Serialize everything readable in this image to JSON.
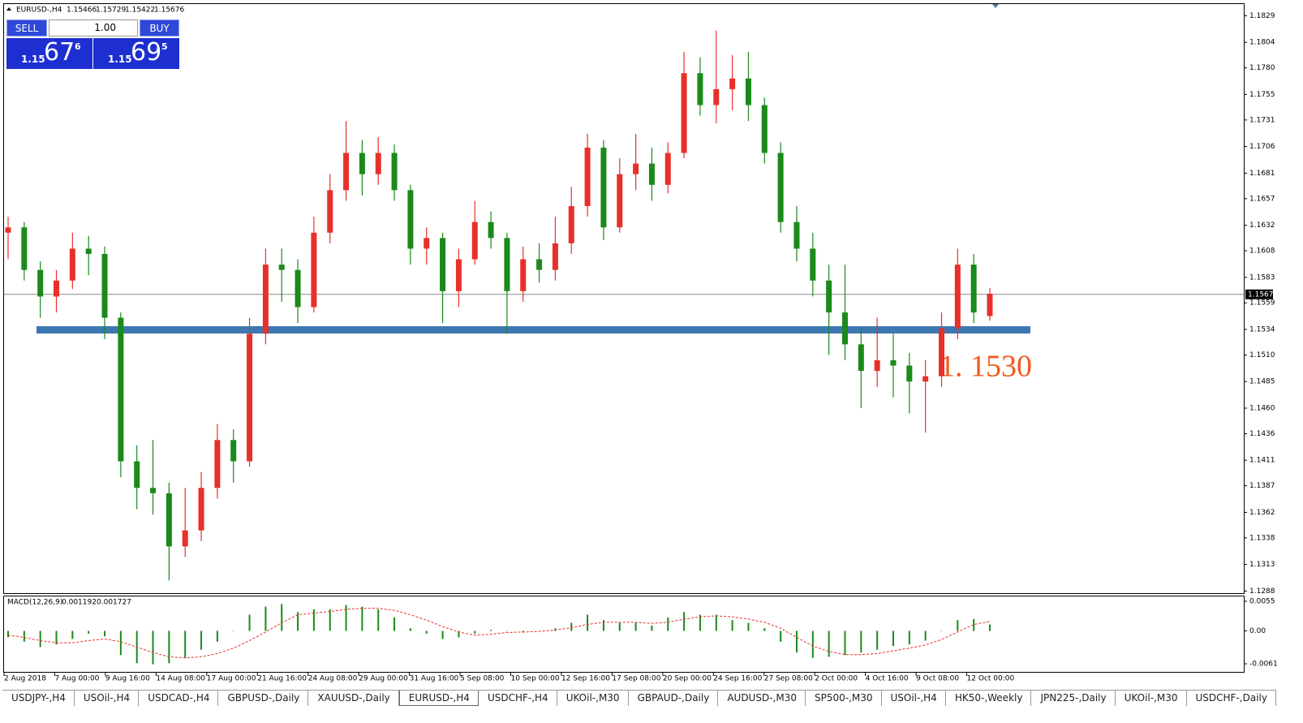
{
  "ui": {
    "trade_panel": {
      "sell": "SELL",
      "buy": "BUY",
      "lot": "1.00",
      "bid_big": "1.15",
      "bid_main": "67",
      "bid_small": "6",
      "ask_big": "1.15",
      "ask_main": "69",
      "ask_small": "5"
    },
    "tabs": [
      "USDJPY-,H4",
      "USOil-,H4",
      "USDCAD-,H4",
      "GBPUSD-,Daily",
      "XAUUSD-,Daily",
      "EURUSD-,H4",
      "USDCHF-,H4",
      "UKOil-,M30",
      "GBPAUD-,Daily",
      "AUDUSD-,M30",
      "SP500-,M30",
      "USOil-,H4",
      "HK50-,Weekly",
      "JPN225-,Daily",
      "UKOil-,M30",
      "USDCHF-,Daily"
    ],
    "active_tab": "EURUSD-,H4"
  },
  "chart_data": [
    {
      "type": "candlestick",
      "title": "EURUSD-,H4",
      "up_color": "#e8302a",
      "down_color": "#1a8a1a",
      "ylim": [
        1.1286,
        1.184
      ],
      "yticks": [
        1.1829,
        1.1804,
        {
          "value": 1.178,
          "label": "1.1780"
        },
        1.1755,
        1.1731,
        1.1706,
        1.1681,
        1.1657,
        1.1632,
        1.1608,
        1.1583,
        1.1559,
        1.1534,
        {
          "value": 1.151,
          "label": "1.1510"
        },
        1.1485,
        {
          "value": 1.146,
          "label": "1.1460"
        },
        1.1436,
        1.1411,
        1.1387,
        1.1362,
        1.1338,
        1.1313,
        1.1288
      ],
      "time_labels": [
        "2 Aug 2018",
        "7 Aug 00:00",
        "9 Aug 16:00",
        "14 Aug 08:00",
        "17 Aug 00:00",
        "21 Aug 16:00",
        "24 Aug 08:00",
        "29 Aug 00:00",
        "31 Aug 16:00",
        "5 Sep 08:00",
        "10 Sep 00:00",
        "12 Sep 16:00",
        "17 Sep 08:00",
        "20 Sep 00:00",
        "24 Sep 16:00",
        "27 Sep 08:00",
        "2 Oct 00:00",
        "4 Oct 16:00",
        "9 Oct 08:00",
        "12 Oct 00:00"
      ],
      "current_price": 1.1567,
      "level": 1.1534,
      "level_color": "#3e78b0",
      "annotation": "1. 1530",
      "annotation_color": "#f05a1e",
      "open": [
        1.1625,
        1.163,
        1.159,
        1.1565,
        1.158,
        1.161,
        1.1605,
        1.1545,
        1.141,
        1.1385,
        1.138,
        1.133,
        1.1345,
        1.1385,
        1.143,
        1.141,
        1.153,
        1.1595,
        1.159,
        1.1555,
        1.1625,
        1.1665,
        1.17,
        1.168,
        1.17,
        1.1665,
        1.161,
        1.162,
        1.157,
        1.16,
        1.1635,
        1.162,
        1.157,
        1.16,
        1.159,
        1.1615,
        1.165,
        1.1705,
        1.163,
        1.168,
        1.169,
        1.167,
        1.17,
        1.1775,
        1.1745,
        1.176,
        1.177,
        1.1745,
        1.17,
        1.1635,
        1.161,
        1.158,
        1.155,
        1.152,
        1.1495,
        1.1505,
        1.15,
        1.1485,
        1.149,
        1.1535,
        1.1595,
        1.15466
      ],
      "high": [
        1.164,
        1.1635,
        1.1598,
        1.159,
        1.1625,
        1.1622,
        1.1612,
        1.155,
        1.1425,
        1.143,
        1.139,
        1.1385,
        1.14,
        1.1445,
        1.144,
        1.1545,
        1.161,
        1.161,
        1.16,
        1.164,
        1.168,
        1.173,
        1.1712,
        1.1715,
        1.1708,
        1.167,
        1.163,
        1.1625,
        1.161,
        1.1655,
        1.1645,
        1.1625,
        1.1612,
        1.1615,
        1.164,
        1.1668,
        1.1718,
        1.1712,
        1.1695,
        1.1718,
        1.1705,
        1.171,
        1.1795,
        1.179,
        1.1815,
        1.1792,
        1.1795,
        1.1752,
        1.171,
        1.165,
        1.1625,
        1.1595,
        1.1595,
        1.1535,
        1.1545,
        1.153,
        1.1512,
        1.1505,
        1.155,
        1.161,
        1.1605,
        1.15729
      ],
      "low": [
        1.16,
        1.158,
        1.1545,
        1.155,
        1.1572,
        1.1585,
        1.1525,
        1.1395,
        1.1365,
        1.136,
        1.1298,
        1.132,
        1.1335,
        1.1375,
        1.139,
        1.1405,
        1.152,
        1.156,
        1.154,
        1.155,
        1.1615,
        1.1655,
        1.166,
        1.167,
        1.1655,
        1.1595,
        1.1595,
        1.154,
        1.1555,
        1.1595,
        1.161,
        1.153,
        1.156,
        1.1578,
        1.158,
        1.1605,
        1.164,
        1.1618,
        1.1625,
        1.1665,
        1.1655,
        1.1662,
        1.1695,
        1.1735,
        1.1728,
        1.174,
        1.173,
        1.169,
        1.1625,
        1.1598,
        1.1565,
        1.151,
        1.1505,
        1.146,
        1.148,
        1.147,
        1.1455,
        1.1437,
        1.148,
        1.1525,
        1.154,
        1.15422
      ],
      "close": [
        1.163,
        1.159,
        1.1565,
        1.158,
        1.161,
        1.1605,
        1.1545,
        1.141,
        1.1385,
        1.138,
        1.133,
        1.1345,
        1.1385,
        1.143,
        1.141,
        1.153,
        1.1595,
        1.159,
        1.1555,
        1.1625,
        1.1665,
        1.17,
        1.168,
        1.17,
        1.1665,
        1.161,
        1.162,
        1.157,
        1.16,
        1.1635,
        1.162,
        1.157,
        1.16,
        1.159,
        1.1615,
        1.165,
        1.1705,
        1.163,
        1.168,
        1.169,
        1.167,
        1.17,
        1.1775,
        1.1745,
        1.176,
        1.177,
        1.1745,
        1.17,
        1.1635,
        1.161,
        1.158,
        1.155,
        1.152,
        1.1495,
        1.1505,
        1.15,
        1.1485,
        1.149,
        1.1535,
        1.1595,
        1.155,
        1.15676
      ]
    },
    {
      "type": "macd",
      "title": "MACD(12,26,9)",
      "color": "#1a8a1a",
      "signal_color": "#e8302a",
      "ylim": [
        -0.0076,
        0.0064
      ],
      "yticks": [
        0.0055,
        {
          "value": 0,
          "label": "0.00"
        },
        -0.0061
      ],
      "values": [
        -0.0012,
        -0.002,
        -0.003,
        -0.0025,
        -0.0015,
        -0.0005,
        -0.001,
        -0.0045,
        -0.006,
        -0.0062,
        -0.006,
        -0.005,
        -0.0035,
        -0.002,
        0.0,
        0.003,
        0.0045,
        0.005,
        0.0035,
        0.004,
        0.004,
        0.0048,
        0.0045,
        0.004,
        0.0025,
        0.0005,
        -0.0005,
        -0.0015,
        -0.0012,
        -0.0005,
        0.0002,
        0.0,
        -0.0003,
        0.0,
        0.0005,
        0.0015,
        0.003,
        0.002,
        0.0015,
        0.0015,
        0.001,
        0.0025,
        0.0035,
        0.003,
        0.003,
        0.002,
        0.0015,
        0.0005,
        -0.002,
        -0.004,
        -0.005,
        -0.0048,
        -0.0045,
        -0.004,
        -0.0035,
        -0.0028,
        -0.0025,
        -0.0018,
        0.0,
        0.002,
        0.0022,
        0.001192
      ],
      "signal": [
        -0.0008,
        -0.0012,
        -0.0018,
        -0.0022,
        -0.0022,
        -0.0018,
        -0.0015,
        -0.002,
        -0.003,
        -0.004,
        -0.0048,
        -0.005,
        -0.0048,
        -0.0042,
        -0.0032,
        -0.0018,
        -0.0002,
        0.0015,
        0.003,
        0.0033,
        0.0036,
        0.004,
        0.0042,
        0.0042,
        0.0038,
        0.003,
        0.002,
        0.0008,
        -0.0002,
        -0.0008,
        -0.0006,
        -0.0003,
        -0.0002,
        -0.0001,
        0.0002,
        0.0006,
        0.0012,
        0.0016,
        0.0016,
        0.0016,
        0.0014,
        0.0016,
        0.0022,
        0.0026,
        0.0028,
        0.0026,
        0.0022,
        0.0016,
        0.0005,
        -0.0012,
        -0.0028,
        -0.0038,
        -0.0044,
        -0.0044,
        -0.0042,
        -0.0037,
        -0.0032,
        -0.0026,
        -0.0016,
        -0.0002,
        0.0012,
        0.001727
      ]
    }
  ]
}
